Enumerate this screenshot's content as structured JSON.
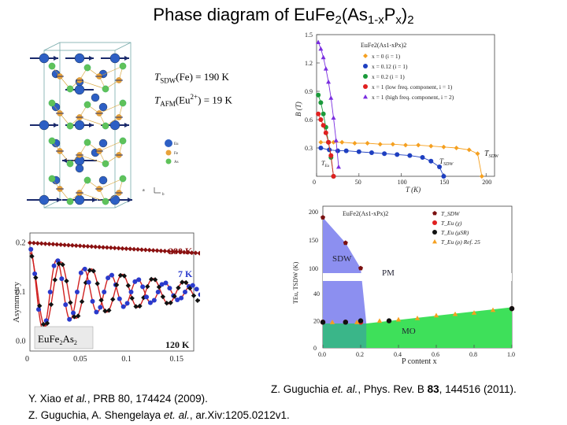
{
  "title": {
    "prefix": "Phase diagram of EuFe",
    "s1": "2",
    "p2": "(As",
    "s2": "1-x",
    "p3": "P",
    "s3": "x",
    "p4": ")",
    "s4": "2"
  },
  "crystal": {
    "annotations": {
      "tsdw": {
        "label": "T",
        "sub": "SDW",
        "text": "(Fe) = 190 K"
      },
      "tafm": {
        "label": "T",
        "sub": "AFM",
        "text": "(Eu",
        "sup": "2+",
        "text2": ") = 19 K"
      }
    },
    "atom_legend": [
      "Eu",
      "Fe",
      "As"
    ],
    "axis_letters": [
      "a",
      "b"
    ],
    "colors": {
      "eu": "#2d5fc4",
      "fe": "#e8a23a",
      "as": "#5fc25a",
      "spin": "#1a2a6c"
    }
  },
  "musr_plot": {
    "title_label": "EuFe",
    "title_sub": "2",
    "title_rest": "As",
    "title_sub2": "2",
    "temp_labels": [
      "280 K",
      "7 K",
      "120 K"
    ],
    "xlabel": "",
    "ylabel": "Asymmetry",
    "yticks": [
      "0.2",
      "0.1",
      "0.0"
    ],
    "xticks": [
      "0",
      "0.05",
      "0.1",
      "0.15"
    ]
  },
  "chart_data": [
    {
      "type": "scatter",
      "title": "EuFe2(As1-xPx)2",
      "xlabel": "T (K)",
      "ylabel": "B (T)",
      "xlim": [
        0,
        210
      ],
      "ylim": [
        0,
        1.5
      ],
      "xticks": [
        "0",
        "50",
        "100",
        "150",
        "200"
      ],
      "yticks": [
        "0.3",
        "0.6",
        "0.9",
        "1.2",
        "1.5"
      ],
      "annotations": [
        "T",
        "T",
        "T"
      ],
      "annotation_subs": [
        "SDW",
        "SDW",
        "Eu"
      ],
      "series": [
        {
          "name": "x = 0       (i = 1)",
          "color": "#f5a020",
          "marker": "diamond",
          "x": [
            5,
            20,
            30,
            45,
            60,
            75,
            90,
            105,
            120,
            135,
            150,
            165,
            180,
            190,
            195
          ],
          "y": [
            0.36,
            0.36,
            0.36,
            0.35,
            0.35,
            0.34,
            0.34,
            0.33,
            0.33,
            0.32,
            0.31,
            0.3,
            0.28,
            0.24,
            0.0
          ]
        },
        {
          "name": "x = 0.12  (i = 1)",
          "color": "#1e3fc0",
          "marker": "circle",
          "x": [
            5,
            15,
            25,
            35,
            50,
            65,
            80,
            95,
            110,
            125,
            135,
            145,
            150
          ],
          "y": [
            0.3,
            0.28,
            0.27,
            0.27,
            0.26,
            0.25,
            0.24,
            0.23,
            0.22,
            0.2,
            0.16,
            0.1,
            0.0
          ]
        },
        {
          "name": "x = 0.2   (i = 1)",
          "color": "#1a9a3a",
          "marker": "circle",
          "x": [
            2,
            5,
            8,
            11,
            14,
            17,
            20
          ],
          "y": [
            0.86,
            0.78,
            0.66,
            0.52,
            0.36,
            0.2,
            0.0
          ]
        },
        {
          "name": "x = 1 (low freq. component, i = 1)",
          "color": "#e02020",
          "marker": "circle",
          "x": [
            2,
            5,
            8,
            11,
            14,
            17,
            20
          ],
          "y": [
            0.66,
            0.6,
            0.54,
            0.46,
            0.36,
            0.22,
            0.0
          ]
        },
        {
          "name": "x = 1 (high freq. component, i = 2)",
          "color": "#7a2ee0",
          "marker": "triangle",
          "x": [
            2,
            5,
            8,
            11,
            14,
            17,
            20,
            23,
            26
          ],
          "y": [
            1.42,
            1.35,
            1.26,
            1.14,
            1.0,
            0.83,
            0.62,
            0.38,
            0.1
          ]
        }
      ]
    },
    {
      "type": "scatter",
      "title": "EuFe2(As1-xPx)2",
      "xlabel": "P content x",
      "ylabel": "TEu, TSDW (K)",
      "xlim": [
        0,
        1.0
      ],
      "xticks": [
        "0.0",
        "0.2",
        "0.4",
        "0.6",
        "0.8",
        "1.0"
      ],
      "yticks_top": [
        "100",
        "150",
        "200"
      ],
      "yticks_bottom": [
        "0",
        "20",
        "40"
      ],
      "region_labels": [
        "SDW",
        "PM",
        "MO"
      ],
      "series": [
        {
          "name": "T_SDW",
          "color": "#7a1010",
          "marker": "pentagon",
          "x": [
            0.0,
            0.12,
            0.2
          ],
          "y": [
            190,
            145,
            100
          ]
        },
        {
          "name": "T_Eu (χ)",
          "color": "#e02020",
          "marker": "circle",
          "x": [
            0.0,
            0.12,
            0.2,
            1.0
          ],
          "y": [
            19,
            19,
            19,
            29
          ]
        },
        {
          "name": "T_Eu (μSR)",
          "color": "#111111",
          "marker": "circle",
          "x": [
            0.0,
            0.12,
            0.2,
            0.35,
            1.0
          ],
          "y": [
            19,
            19,
            20,
            20,
            29
          ]
        },
        {
          "name": "T_Eu (ρ) Ref. 25",
          "color": "#f5a020",
          "marker": "triangle",
          "x": [
            0.05,
            0.18,
            0.3,
            0.4,
            0.5,
            0.6,
            0.7,
            0.8,
            0.9
          ],
          "y": [
            19,
            19,
            20,
            21,
            22,
            24,
            25,
            26,
            28
          ]
        }
      ]
    }
  ],
  "citations": {
    "right": {
      "a": "Z. Guguchia ",
      "b": "et. al.",
      "c": ", Phys. Rev. B ",
      "d": "83",
      "e": ", 144516 (2011)."
    },
    "xiao": {
      "a": "Y. Xiao ",
      "b": "et al.",
      "c": ", PRB 80, 174424  (2009)."
    },
    "arxiv": {
      "a": "Z. Guguchia, A. Shengelaya ",
      "b": "et. al.",
      "c": ", ar.Xiv:1205.0212v1."
    }
  }
}
